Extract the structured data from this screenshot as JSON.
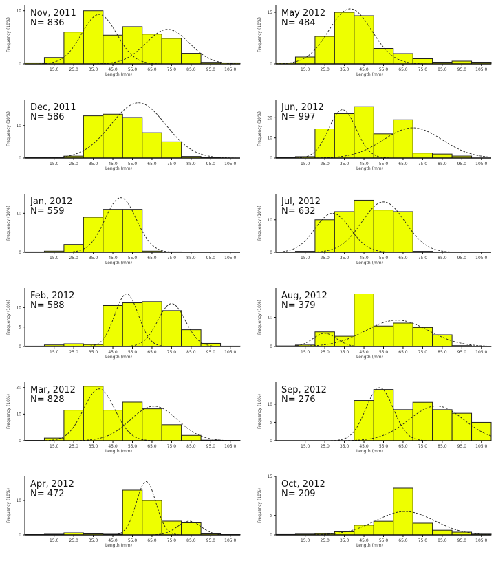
{
  "figure": {
    "name": "length-frequency-histograms"
  },
  "chart_data": [
    {
      "type": "bar",
      "month": "Nov, 2011",
      "n_label": "N= 836",
      "xlabel": "Length (mm)",
      "ylabel": "Frequency (10%)",
      "x_ticks": [
        15,
        25,
        35,
        45,
        55,
        65,
        75,
        85,
        95,
        105
      ],
      "bin_width": 10,
      "bin_starts": [
        0,
        10,
        20,
        30,
        40,
        50,
        60,
        70,
        80,
        90,
        100
      ],
      "values": [
        0.2,
        1.2,
        6.0,
        10.0,
        5.4,
        7.0,
        5.6,
        4.8,
        2.0,
        0.3,
        0.2
      ],
      "curves": [
        {
          "mean": 38,
          "sd": 9,
          "peak": 9.3
        },
        {
          "mean": 73,
          "sd": 11,
          "peak": 6.5
        }
      ],
      "x_range": [
        0,
        110
      ],
      "y_max": 11,
      "y_ticks": [
        0,
        10
      ]
    },
    {
      "type": "bar",
      "month": "May 2012",
      "n_label": "N= 484",
      "xlabel": "Length (mm)",
      "ylabel": "Frequency (10%)",
      "x_ticks": [
        15,
        25,
        35,
        45,
        55,
        65,
        75,
        85,
        95,
        105
      ],
      "bin_width": 10,
      "bin_starts": [
        0,
        10,
        20,
        30,
        40,
        50,
        60,
        70,
        80,
        90,
        100
      ],
      "values": [
        0.3,
        2.0,
        8.0,
        15.0,
        14.0,
        4.5,
        3.0,
        1.5,
        0.5,
        0.8,
        0.5
      ],
      "curves": [
        {
          "mean": 38,
          "sd": 11,
          "peak": 16.0
        }
      ],
      "x_range": [
        0,
        110
      ],
      "y_max": 17,
      "y_ticks": [
        0,
        15
      ]
    },
    {
      "type": "bar",
      "month": "Dec, 2011",
      "n_label": "N= 586",
      "xlabel": "Length (mm)",
      "ylabel": "Frequency (10%)",
      "x_ticks": [
        15,
        25,
        35,
        45,
        55,
        65,
        75,
        85,
        95,
        105
      ],
      "bin_width": 10,
      "bin_starts": [
        0,
        10,
        20,
        30,
        40,
        50,
        60,
        70,
        80,
        90,
        100
      ],
      "values": [
        0.1,
        0.1,
        0.6,
        13.0,
        13.5,
        12.5,
        7.8,
        5.0,
        0.5,
        0.1,
        0.0
      ],
      "curves": [
        {
          "mean": 58,
          "sd": 14,
          "peak": 17.0
        }
      ],
      "x_range": [
        0,
        110
      ],
      "y_max": 18,
      "y_ticks": [
        0,
        10
      ]
    },
    {
      "type": "bar",
      "month": "Jun, 2012",
      "n_label": "N= 997",
      "xlabel": "Length (mm)",
      "ylabel": "Frequency (10%)",
      "x_ticks": [
        15,
        25,
        35,
        45,
        55,
        65,
        75,
        85,
        95,
        105
      ],
      "bin_width": 10,
      "bin_starts": [
        0,
        10,
        20,
        30,
        40,
        50,
        60,
        70,
        80,
        90,
        100
      ],
      "values": [
        0.3,
        0.7,
        14.5,
        22.0,
        25.5,
        12.0,
        19.0,
        2.5,
        2.0,
        1.0,
        0.0
      ],
      "curves": [
        {
          "mean": 34,
          "sd": 7,
          "peak": 24.0
        },
        {
          "mean": 70,
          "sd": 15,
          "peak": 15.0
        }
      ],
      "x_range": [
        0,
        110
      ],
      "y_max": 29,
      "y_ticks": [
        0,
        10,
        20
      ]
    },
    {
      "type": "bar",
      "month": "Jan, 2012",
      "n_label": "N= 559",
      "xlabel": "Length (mm)",
      "ylabel": "Frequency (10%)",
      "x_ticks": [
        15,
        25,
        35,
        45,
        55,
        65,
        75,
        85,
        95,
        105
      ],
      "bin_width": 10,
      "bin_starts": [
        0,
        10,
        20,
        30,
        40,
        50,
        60,
        70,
        80,
        90,
        100
      ],
      "values": [
        0.1,
        0.3,
        2.0,
        9.0,
        11.0,
        11.0,
        0.3,
        0.1,
        0.0,
        0.0,
        0.0
      ],
      "curves": [
        {
          "mean": 49,
          "sd": 8,
          "peak": 14.0
        }
      ],
      "x_range": [
        0,
        110
      ],
      "y_max": 15,
      "y_ticks": [
        0,
        10
      ]
    },
    {
      "type": "bar",
      "month": "Jul, 2012",
      "n_label": "N= 632",
      "xlabel": "Length (mm)",
      "ylabel": "Frequency (10%)",
      "x_ticks": [
        15,
        25,
        35,
        45,
        55,
        65,
        75,
        85,
        95,
        105
      ],
      "bin_width": 10,
      "bin_starts": [
        0,
        10,
        20,
        30,
        40,
        50,
        60,
        70,
        80,
        90,
        100
      ],
      "values": [
        0.1,
        0.3,
        10.0,
        12.5,
        16.0,
        13.0,
        12.5,
        0.3,
        0.1,
        0.0,
        0.0
      ],
      "curves": [
        {
          "mean": 29,
          "sd": 9,
          "peak": 12.0
        },
        {
          "mean": 55,
          "sd": 11,
          "peak": 15.5
        }
      ],
      "x_range": [
        0,
        110
      ],
      "y_max": 18,
      "y_ticks": [
        0,
        10
      ]
    },
    {
      "type": "bar",
      "month": "Feb, 2012",
      "n_label": "N= 588",
      "xlabel": "Length (mm)",
      "ylabel": "Frequency (10%)",
      "x_ticks": [
        15,
        25,
        35,
        45,
        55,
        65,
        75,
        85,
        95,
        105
      ],
      "bin_width": 10,
      "bin_starts": [
        0,
        10,
        20,
        30,
        40,
        50,
        60,
        70,
        80,
        90,
        100
      ],
      "values": [
        0.1,
        0.4,
        0.7,
        0.5,
        10.5,
        11.2,
        11.5,
        9.2,
        4.3,
        0.8,
        0.1
      ],
      "curves": [
        {
          "mean": 52,
          "sd": 6,
          "peak": 13.5
        },
        {
          "mean": 75,
          "sd": 7,
          "peak": 11.0
        }
      ],
      "x_range": [
        0,
        110
      ],
      "y_max": 15,
      "y_ticks": [
        0,
        5,
        10
      ]
    },
    {
      "type": "bar",
      "month": "Aug, 2012",
      "n_label": "N= 379",
      "xlabel": "Length (mm)",
      "ylabel": "Frequency (10%)",
      "x_ticks": [
        15,
        25,
        35,
        45,
        55,
        65,
        75,
        85,
        95,
        105
      ],
      "bin_width": 10,
      "bin_starts": [
        0,
        10,
        20,
        30,
        40,
        50,
        60,
        70,
        80,
        90,
        100
      ],
      "values": [
        0.2,
        0.5,
        5.0,
        3.5,
        18.0,
        7.0,
        8.0,
        6.5,
        4.0,
        0.3,
        0.1
      ],
      "curves": [
        {
          "mean": 25,
          "sd": 6,
          "peak": 4.5
        },
        {
          "mean": 62,
          "sd": 16,
          "peak": 9.0
        }
      ],
      "x_range": [
        0,
        110
      ],
      "y_max": 20,
      "y_ticks": [
        0,
        10
      ]
    },
    {
      "type": "bar",
      "month": "Mar, 2012",
      "n_label": "N= 828",
      "xlabel": "Length (mm)",
      "ylabel": "Frequency (10%)",
      "x_ticks": [
        15,
        25,
        35,
        45,
        55,
        65,
        75,
        85,
        95,
        105
      ],
      "bin_width": 10,
      "bin_starts": [
        0,
        10,
        20,
        30,
        40,
        50,
        60,
        70,
        80,
        90,
        100
      ],
      "values": [
        0.1,
        1.0,
        11.5,
        20.5,
        11.5,
        14.5,
        12.0,
        6.0,
        2.0,
        0.2,
        0.1
      ],
      "curves": [
        {
          "mean": 38,
          "sd": 8,
          "peak": 19.5
        },
        {
          "mean": 66,
          "sd": 12,
          "peak": 13.0
        }
      ],
      "x_range": [
        0,
        110
      ],
      "y_max": 22,
      "y_ticks": [
        0,
        10,
        20
      ]
    },
    {
      "type": "bar",
      "month": "Sep, 2012",
      "n_label": "N= 276",
      "xlabel": "Length (mm)",
      "ylabel": "Frequency (10%)",
      "x_ticks": [
        15,
        25,
        35,
        45,
        55,
        65,
        75,
        85,
        95,
        105
      ],
      "bin_width": 10,
      "bin_starts": [
        0,
        10,
        20,
        30,
        40,
        50,
        60,
        70,
        80,
        90,
        100
      ],
      "values": [
        0.0,
        0.0,
        0.0,
        0.0,
        11.0,
        14.0,
        8.5,
        10.5,
        8.5,
        7.5,
        5.0
      ],
      "curves": [
        {
          "mean": 53,
          "sd": 7,
          "peak": 14.5
        },
        {
          "mean": 82,
          "sd": 14,
          "peak": 9.5
        }
      ],
      "x_range": [
        0,
        110
      ],
      "y_max": 16,
      "y_ticks": [
        0,
        5,
        10
      ]
    },
    {
      "type": "bar",
      "month": "Apr, 2012",
      "n_label": "N= 472",
      "xlabel": "Length (mm)",
      "ylabel": "Frequency (10%)",
      "x_ticks": [
        15,
        25,
        35,
        45,
        55,
        65,
        75,
        85,
        95,
        105
      ],
      "bin_width": 10,
      "bin_starts": [
        0,
        10,
        20,
        30,
        40,
        50,
        60,
        70,
        80,
        90,
        100
      ],
      "values": [
        0.1,
        0.2,
        0.6,
        0.3,
        0.2,
        13.0,
        10.0,
        4.0,
        3.5,
        0.3,
        0.1
      ],
      "curves": [
        {
          "mean": 62,
          "sd": 5,
          "peak": 15.5
        },
        {
          "mean": 84,
          "sd": 6,
          "peak": 4.0
        }
      ],
      "x_range": [
        0,
        110
      ],
      "y_max": 17,
      "y_ticks": [
        0,
        10
      ]
    },
    {
      "type": "bar",
      "month": "Oct, 2012",
      "n_label": "N= 209",
      "xlabel": "Length (mm)",
      "ylabel": "Frequency (10%)",
      "x_ticks": [
        15,
        25,
        35,
        45,
        55,
        65,
        75,
        85,
        95,
        105
      ],
      "bin_width": 10,
      "bin_starts": [
        0,
        10,
        20,
        30,
        40,
        50,
        60,
        70,
        80,
        90,
        100
      ],
      "values": [
        0.1,
        0.2,
        0.3,
        0.8,
        2.5,
        3.5,
        12.0,
        3.0,
        1.2,
        0.7,
        0.2
      ],
      "curves": [
        {
          "mean": 66,
          "sd": 15,
          "peak": 6.0
        }
      ],
      "x_range": [
        0,
        110
      ],
      "y_max": 15,
      "y_ticks": [
        0,
        5,
        15
      ]
    }
  ],
  "colors": {
    "bar_fill": "#eeff00",
    "bar_stroke": "#222222",
    "curve": "#222222",
    "axis": "#111111"
  }
}
